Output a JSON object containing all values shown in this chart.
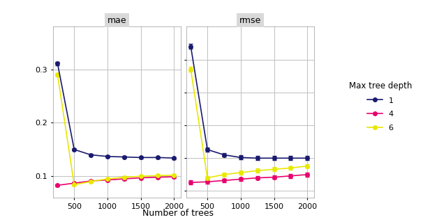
{
  "x_values": [
    250,
    500,
    750,
    1000,
    1250,
    1500,
    1750,
    2000
  ],
  "mae_depth1": [
    0.311,
    0.15,
    0.14,
    0.137,
    0.136,
    0.135,
    0.135,
    0.134
  ],
  "mae_depth4": [
    0.083,
    0.087,
    0.091,
    0.093,
    0.095,
    0.097,
    0.098,
    0.099
  ],
  "mae_depth6": [
    0.29,
    0.084,
    0.09,
    0.095,
    0.098,
    0.1,
    0.101,
    0.102
  ],
  "mae_depth1_err": [
    0.003,
    0.002,
    0.002,
    0.002,
    0.002,
    0.002,
    0.002,
    0.002
  ],
  "mae_depth4_err": [
    0.002,
    0.002,
    0.002,
    0.002,
    0.002,
    0.002,
    0.002,
    0.002
  ],
  "mae_depth6_err": [
    0.003,
    0.002,
    0.002,
    0.002,
    0.002,
    0.002,
    0.002,
    0.002
  ],
  "rmse_depth1": [
    0.37,
    0.213,
    0.205,
    0.201,
    0.2,
    0.2,
    0.2,
    0.2
  ],
  "rmse_depth4": [
    0.163,
    0.164,
    0.166,
    0.168,
    0.17,
    0.171,
    0.173,
    0.175
  ],
  "rmse_depth6": [
    0.335,
    0.17,
    0.175,
    0.178,
    0.181,
    0.183,
    0.185,
    0.188
  ],
  "rmse_depth1_err": [
    0.004,
    0.003,
    0.003,
    0.003,
    0.003,
    0.003,
    0.003,
    0.003
  ],
  "rmse_depth4_err": [
    0.003,
    0.003,
    0.003,
    0.003,
    0.003,
    0.003,
    0.003,
    0.003
  ],
  "rmse_depth6_err": [
    0.004,
    0.003,
    0.003,
    0.003,
    0.003,
    0.003,
    0.003,
    0.003
  ],
  "color_depth1": "#1a1a6e",
  "color_depth4": "#e8006e",
  "color_depth6": "#e8e800",
  "panel_bg": "#d9d9d9",
  "plot_bg": "#ffffff",
  "grid_color": "#c0c0c0",
  "xlabel": "Number of trees",
  "legend_title": "Max tree depth",
  "legend_labels": [
    "1",
    "4",
    "6"
  ],
  "mae_label": "mae",
  "rmse_label": "rmse",
  "ylim_mae": [
    0.06,
    0.38
  ],
  "ylim_rmse": [
    0.14,
    0.4
  ],
  "yticks_mae": [
    0.1,
    0.2,
    0.3
  ],
  "yticks_rmse": [
    0.15,
    0.2,
    0.25,
    0.3,
    0.35
  ],
  "xticks": [
    500,
    1000,
    1500,
    2000
  ],
  "marker": "o",
  "markersize": 4,
  "linewidth": 1.2,
  "capsize": 2,
  "elinewidth": 0.8
}
